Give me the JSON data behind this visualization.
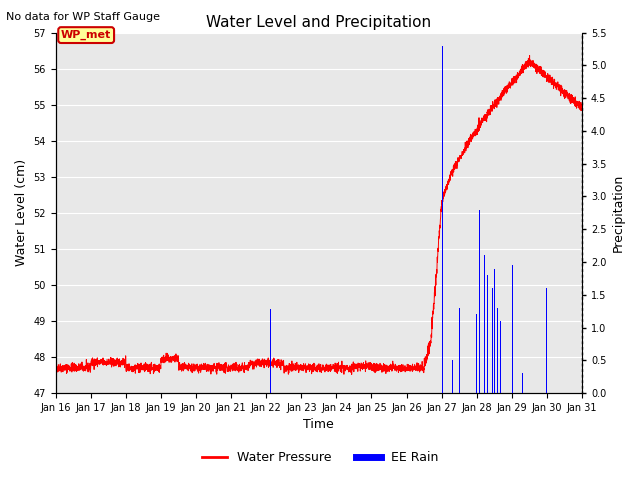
{
  "title": "Water Level and Precipitation",
  "subtitle": "No data for WP Staff Gauge",
  "ylabel_left": "Water Level (cm)",
  "ylabel_right": "Precipitation",
  "xlabel": "Time",
  "ylim_left": [
    47.0,
    57.0
  ],
  "ylim_right": [
    0.0,
    5.5
  ],
  "yticks_left": [
    47.0,
    48.0,
    49.0,
    50.0,
    51.0,
    52.0,
    53.0,
    54.0,
    55.0,
    56.0,
    57.0
  ],
  "yticks_right": [
    0.0,
    0.5,
    1.0,
    1.5,
    2.0,
    2.5,
    3.0,
    3.5,
    4.0,
    4.5,
    5.0,
    5.5
  ],
  "water_color": "#FF0000",
  "rain_color": "#0000FF",
  "legend_water": "Water Pressure",
  "legend_rain": "EE Rain",
  "annotation_label": "WP_met",
  "annotation_color": "#CC0000",
  "annotation_bg": "#FFFF99",
  "background_color": "#E8E8E8",
  "xstart_day": 16,
  "xend_day": 31,
  "num_points": 3600,
  "xtick_labels": [
    "Jan 16",
    "Jan 17",
    "Jan 18",
    "Jan 19",
    "Jan 20",
    "Jan 21",
    "Jan 22",
    "Jan 23",
    "Jan 24",
    "Jan 25",
    "Jan 26",
    "Jan 27",
    "Jan 28",
    "Jan 29",
    "Jan 30",
    "Jan 31"
  ]
}
